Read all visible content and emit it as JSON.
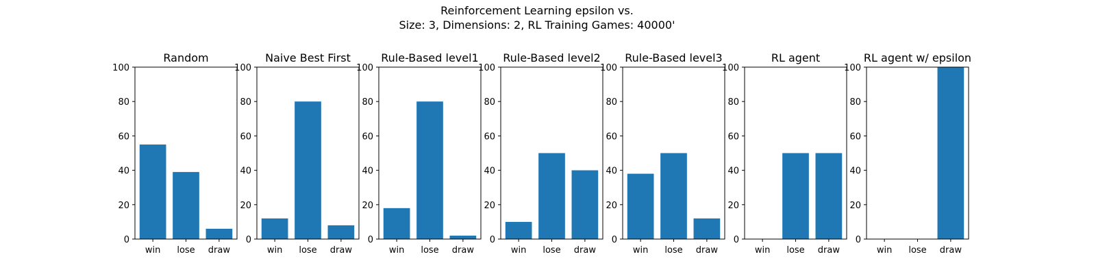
{
  "figure": {
    "title_line1": "Reinforcement Learning epsilon vs.",
    "title_line2": "Size: 3, Dimensions: 2, RL Training Games: 40000'"
  },
  "colors": {
    "bar": "#1f77b4",
    "axis": "#000000",
    "background": "#ffffff"
  },
  "chart_data": [
    {
      "type": "bar",
      "title": "Random",
      "categories": [
        "win",
        "lose",
        "draw"
      ],
      "values": [
        55,
        39,
        6
      ],
      "ylim": [
        0,
        100
      ],
      "yticks": [
        0,
        20,
        40,
        60,
        80,
        100
      ],
      "grid": false
    },
    {
      "type": "bar",
      "title": "Naive Best First",
      "categories": [
        "win",
        "lose",
        "draw"
      ],
      "values": [
        12,
        80,
        8
      ],
      "ylim": [
        0,
        100
      ],
      "yticks": [
        0,
        20,
        40,
        60,
        80,
        100
      ],
      "grid": false
    },
    {
      "type": "bar",
      "title": "Rule-Based level1",
      "categories": [
        "win",
        "lose",
        "draw"
      ],
      "values": [
        18,
        80,
        2
      ],
      "ylim": [
        0,
        100
      ],
      "yticks": [
        0,
        20,
        40,
        60,
        80,
        100
      ],
      "grid": false
    },
    {
      "type": "bar",
      "title": "Rule-Based level2",
      "categories": [
        "win",
        "lose",
        "draw"
      ],
      "values": [
        10,
        50,
        40
      ],
      "ylim": [
        0,
        100
      ],
      "yticks": [
        0,
        20,
        40,
        60,
        80,
        100
      ],
      "grid": false
    },
    {
      "type": "bar",
      "title": "Rule-Based level3",
      "categories": [
        "win",
        "lose",
        "draw"
      ],
      "values": [
        38,
        50,
        12
      ],
      "ylim": [
        0,
        100
      ],
      "yticks": [
        0,
        20,
        40,
        60,
        80,
        100
      ],
      "grid": false
    },
    {
      "type": "bar",
      "title": "RL agent",
      "categories": [
        "win",
        "lose",
        "draw"
      ],
      "values": [
        0,
        50,
        50
      ],
      "ylim": [
        0,
        100
      ],
      "yticks": [
        0,
        20,
        40,
        60,
        80,
        100
      ],
      "grid": false
    },
    {
      "type": "bar",
      "title": "RL agent w/ epsilon",
      "categories": [
        "win",
        "lose",
        "draw"
      ],
      "values": [
        0,
        0,
        100
      ],
      "ylim": [
        0,
        100
      ],
      "yticks": [
        0,
        20,
        40,
        60,
        80,
        100
      ],
      "grid": false
    }
  ]
}
